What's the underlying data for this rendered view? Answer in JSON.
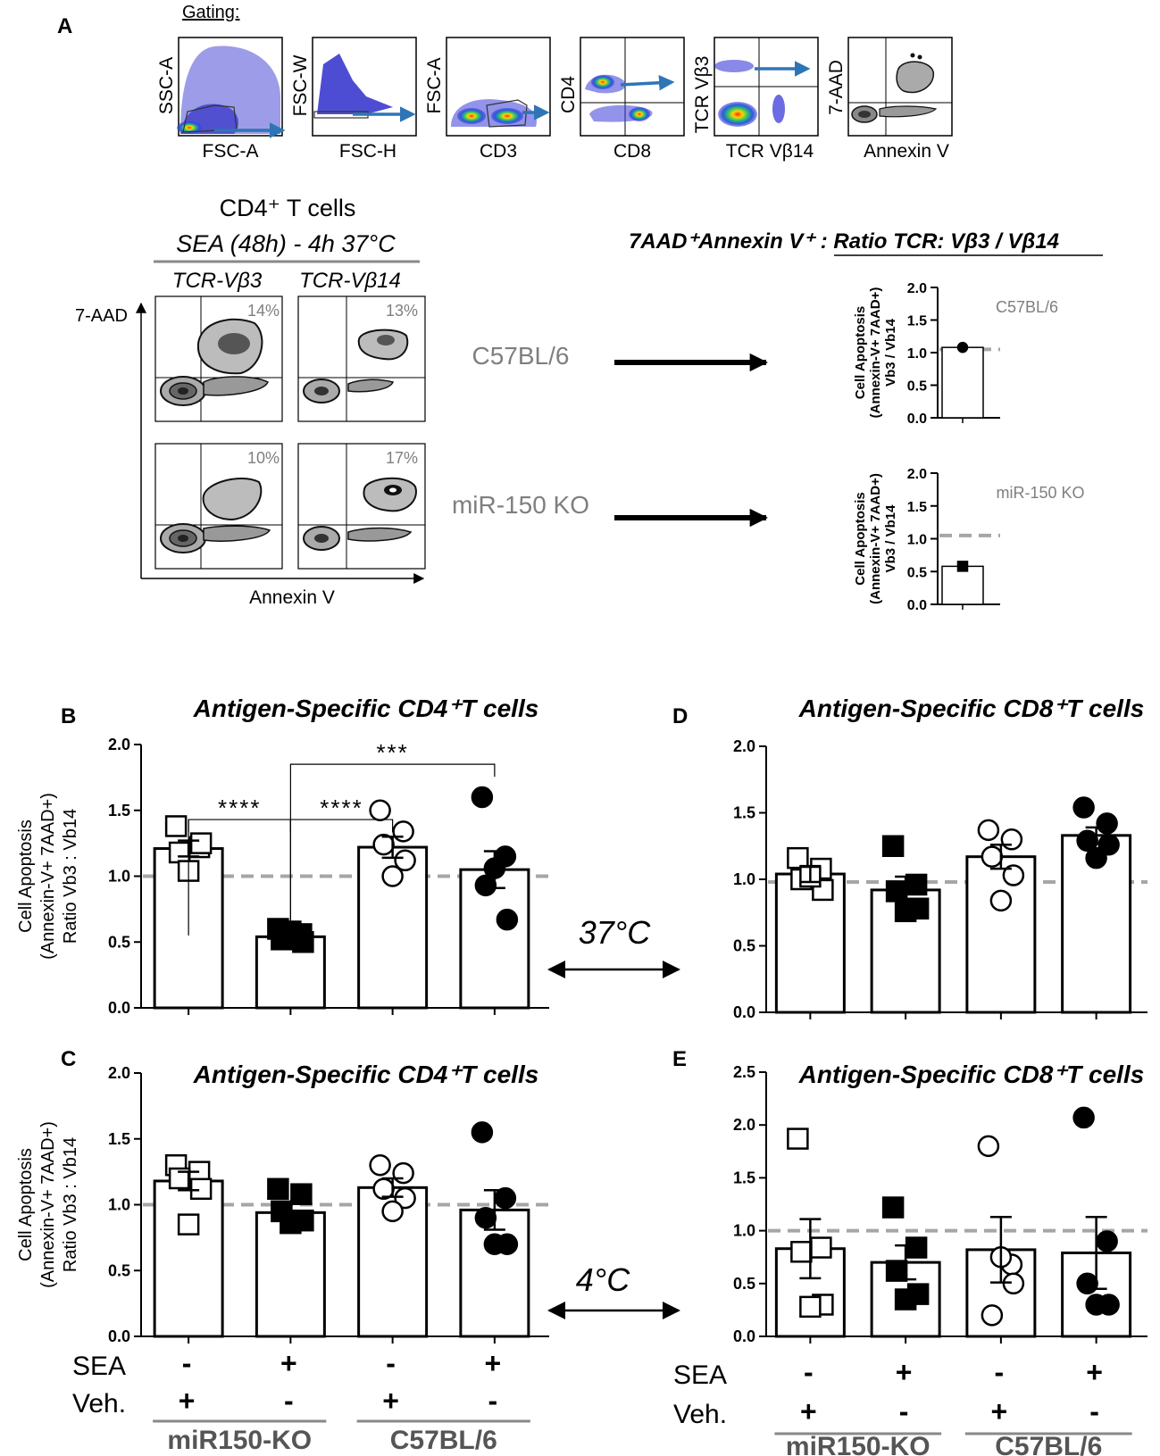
{
  "colors": {
    "axis": "#000000",
    "bar_fill": "#ffffff",
    "dashed_reference": "#a6a6a6",
    "arrow_blue": "#2e75b6",
    "gray_text": "#7f7f7f",
    "contour_dark": "#1a1a1a",
    "flow_blue": "#3a3ad8"
  },
  "panel_a": {
    "letter": "A",
    "gating_label": "Gating:",
    "gating_plots": [
      {
        "x_label": "FSC-A",
        "y_label": "SSC-A"
      },
      {
        "x_label": "FSC-H",
        "y_label": "FSC-W"
      },
      {
        "x_label": "CD3",
        "y_label": "FSC-A"
      },
      {
        "x_label": "CD8",
        "y_label": "CD4"
      },
      {
        "x_label": "TCR Vβ14",
        "y_label": "TCR Vβ3"
      },
      {
        "x_label": "Annexin V",
        "y_label": "7-AAD"
      }
    ],
    "cell_title": "CD4⁺ T cells",
    "condition": "SEA (48h) - 4h 37°C",
    "column_headers": [
      "TCR-Vβ3",
      "TCR-Vβ14"
    ],
    "y_axis_label": "7-AAD",
    "x_axis_label": "Annexin V",
    "percentages": [
      "14%",
      "13%",
      "10%",
      "17%"
    ],
    "row_labels": [
      "C57BL/6",
      "miR-150 KO"
    ],
    "ratio_title": "7AAD⁺Annexin V⁺ : Ratio TCR: Vβ3 / Vβ14"
  },
  "chart_data": [
    {
      "id": "A-C57BL6-ratio",
      "type": "bar",
      "ylabel": "Cell Apoptosis (Annexin-V+ 7AAD+) Vb3 / Vb14",
      "annotation": "C57BL/6",
      "ylim": [
        0,
        2
      ],
      "yticks": [
        "0.0",
        "0.5",
        "1.0",
        "1.5",
        "2.0"
      ],
      "reference_line": 1.05,
      "bar_value": 1.08,
      "points": [
        1.08
      ],
      "marker": "filled-circle"
    },
    {
      "id": "A-miR150KO-ratio",
      "type": "bar",
      "ylabel": "Cell Apoptosis (Annexin-V+ 7AAD+) Vb3 / Vb14",
      "annotation": "miR-150 KO",
      "ylim": [
        0,
        2
      ],
      "yticks": [
        "0.0",
        "0.5",
        "1.0",
        "1.5",
        "2.0"
      ],
      "reference_line": 1.05,
      "bar_value": 0.58,
      "points": [
        0.58
      ],
      "marker": "filled-square"
    },
    {
      "id": "B",
      "letter": "B",
      "type": "bar",
      "title": "Antigen-Specific CD4⁺T cells",
      "ylabel": "Cell Apoptosis (Annexin-V+ 7AAD+) Ratio Vb3 : Vb14",
      "ylim": [
        0,
        2
      ],
      "yticks": [
        "0.0",
        "0.5",
        "1.0",
        "1.5",
        "2.0"
      ],
      "reference_line": 1.0,
      "grid": false,
      "groups": [
        {
          "mean": 1.21,
          "sem": 0.06,
          "marker": "open-square",
          "points": [
            1.38,
            1.22,
            1.18,
            1.25,
            1.04
          ]
        },
        {
          "mean": 0.54,
          "sem": 0.03,
          "marker": "filled-square",
          "points": [
            0.6,
            0.56,
            0.52,
            0.5,
            0.58
          ]
        },
        {
          "mean": 1.22,
          "sem": 0.08,
          "marker": "open-circle",
          "points": [
            1.5,
            1.34,
            1.24,
            1.12,
            1.0
          ]
        },
        {
          "mean": 1.05,
          "sem": 0.14,
          "marker": "filled-circle",
          "points": [
            1.6,
            1.15,
            0.93,
            0.67,
            1.06
          ]
        }
      ],
      "significance": [
        "****",
        "****",
        "***"
      ]
    },
    {
      "id": "C",
      "letter": "C",
      "type": "bar",
      "title": "Antigen-Specific CD4⁺T cells",
      "ylabel": "Cell Apoptosis (Annexin-V+ 7AAD+) Ratio Vb3 : Vb14",
      "ylim": [
        0,
        2
      ],
      "yticks": [
        "0.0",
        "0.5",
        "1.0",
        "1.5",
        "2.0"
      ],
      "reference_line": 1.0,
      "grid": false,
      "groups": [
        {
          "mean": 1.18,
          "sem": 0.07,
          "marker": "open-square",
          "points": [
            1.3,
            1.25,
            1.2,
            1.12,
            0.85
          ]
        },
        {
          "mean": 0.94,
          "sem": 0.07,
          "marker": "filled-square",
          "points": [
            1.12,
            1.08,
            0.95,
            0.88,
            0.86
          ]
        },
        {
          "mean": 1.13,
          "sem": 0.07,
          "marker": "open-circle",
          "points": [
            1.3,
            1.24,
            1.12,
            1.05,
            0.95
          ]
        },
        {
          "mean": 0.96,
          "sem": 0.15,
          "marker": "filled-circle",
          "points": [
            1.55,
            1.05,
            0.9,
            0.7,
            0.7
          ]
        }
      ],
      "x_rows": [
        {
          "label": "SEA",
          "values": [
            "-",
            "+",
            "-",
            "+"
          ]
        },
        {
          "label": "Veh.",
          "values": [
            "+",
            "-",
            "+",
            "-"
          ]
        }
      ],
      "group_labels": [
        "miR150-KO",
        "C57BL/6"
      ]
    },
    {
      "id": "D",
      "letter": "D",
      "type": "bar",
      "title": "Antigen-Specific CD8⁺T cells",
      "ylim": [
        0,
        2
      ],
      "yticks": [
        "0.0",
        "0.5",
        "1.0",
        "1.5",
        "2.0"
      ],
      "reference_line": 0.98,
      "grid": false,
      "groups": [
        {
          "mean": 1.04,
          "sem": 0.06,
          "marker": "open-square",
          "points": [
            1.16,
            1.08,
            1.0,
            0.92,
            1.02
          ]
        },
        {
          "mean": 0.92,
          "sem": 0.1,
          "marker": "filled-square",
          "points": [
            1.25,
            0.96,
            0.91,
            0.78,
            0.76
          ]
        },
        {
          "mean": 1.17,
          "sem": 0.09,
          "marker": "open-circle",
          "points": [
            1.37,
            1.3,
            1.17,
            1.03,
            0.84
          ]
        },
        {
          "mean": 1.33,
          "sem": 0.06,
          "marker": "filled-circle",
          "points": [
            1.54,
            1.42,
            1.29,
            1.26,
            1.16
          ]
        }
      ]
    },
    {
      "id": "E",
      "letter": "E",
      "type": "bar",
      "title": "Antigen-Specific CD8⁺T cells",
      "ylim": [
        0,
        2.5
      ],
      "yticks": [
        "0.0",
        "0.5",
        "1.0",
        "1.5",
        "2.0",
        "2.5"
      ],
      "reference_line": 1.0,
      "grid": false,
      "groups": [
        {
          "mean": 0.83,
          "sem": 0.28,
          "marker": "open-square",
          "points": [
            1.87,
            0.84,
            0.8,
            0.3,
            0.28
          ]
        },
        {
          "mean": 0.7,
          "sem": 0.16,
          "marker": "filled-square",
          "points": [
            1.22,
            0.84,
            0.62,
            0.4,
            0.35
          ]
        },
        {
          "mean": 0.82,
          "sem": 0.31,
          "marker": "open-circle",
          "points": [
            1.8,
            0.68,
            0.2,
            0.5,
            0.75
          ]
        },
        {
          "mean": 0.79,
          "sem": 0.34,
          "marker": "filled-circle",
          "points": [
            2.07,
            0.9,
            0.5,
            0.3,
            0.3
          ]
        }
      ],
      "x_rows": [
        {
          "label": "SEA",
          "values": [
            "-",
            "+",
            "-",
            "+"
          ]
        },
        {
          "label": "Veh.",
          "values": [
            "+",
            "-",
            "+",
            "-"
          ]
        }
      ],
      "group_labels": [
        "miR150-KO",
        "C57BL/6"
      ]
    }
  ],
  "temperature_labels": [
    "37°C",
    "4°C"
  ]
}
